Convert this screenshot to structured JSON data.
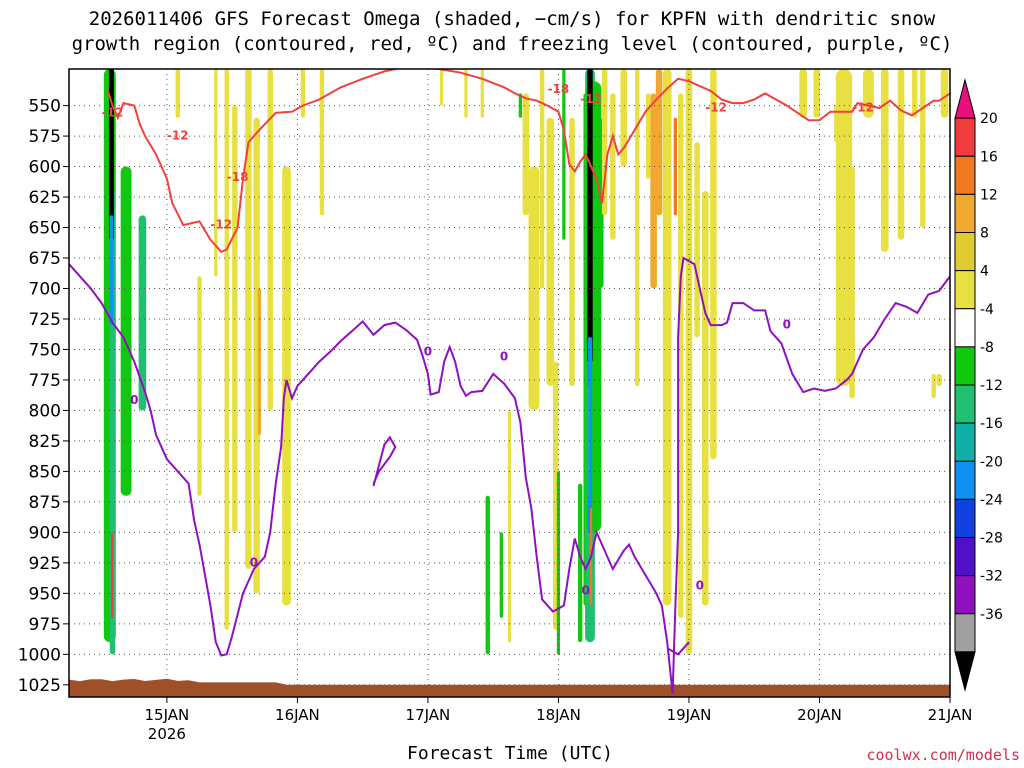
{
  "title_line1": "2026011406 GFS Forecast Omega (shaded, −cm/s) for KPFN with dendritic snow",
  "title_line2": "growth region (contoured, red, ºC) and freezing level (contoured, purple, ºC)",
  "xaxis_title": "Forecast Time (UTC)",
  "credit": "coolwx.com/models",
  "chart_data": {
    "type": "heatmap",
    "title": "2026011406 GFS Forecast Omega (shaded, −cm/s) for KPFN with dendritic snow growth region (contoured, red, ºC) and freezing level (contoured, purple, ºC)",
    "xlabel": "Forecast Time (UTC)",
    "ylabel": "",
    "x_range_hours": [
      6,
      168
    ],
    "y_axis": {
      "ticks": [
        550,
        575,
        600,
        625,
        650,
        675,
        700,
        725,
        750,
        775,
        800,
        825,
        850,
        875,
        900,
        925,
        950,
        975,
        1000,
        1025
      ],
      "range": [
        520,
        1035
      ]
    },
    "x_ticks": [
      {
        "label": "15JAN",
        "sublabel": "2026",
        "hour": 24
      },
      {
        "label": "16JAN",
        "hour": 48
      },
      {
        "label": "17JAN",
        "hour": 72
      },
      {
        "label": "18JAN",
        "hour": 96
      },
      {
        "label": "19JAN",
        "hour": 120
      },
      {
        "label": "20JAN",
        "hour": 144
      },
      {
        "label": "21JAN",
        "hour": 168
      }
    ],
    "colorbar": {
      "levels": [
        20,
        16,
        12,
        8,
        4,
        -4,
        -8,
        -12,
        -16,
        -20,
        -24,
        -28,
        -32,
        -36
      ],
      "colors": [
        "#e8107a",
        "#f03c3c",
        "#f07820",
        "#f0a830",
        "#e0cc30",
        "#e8e040",
        "#ffffff",
        "#10c810",
        "#20c070",
        "#10b0a8",
        "#1090f0",
        "#1040e0",
        "#5010c8",
        "#9010c0",
        "#a0a0a0",
        "#000000"
      ]
    },
    "colors": {
      "dgz_contour": "#f04040",
      "freezing_contour": "#9010c0",
      "ground": "#a05028"
    },
    "contour_labels": {
      "red": [
        "-12",
        "-12",
        "-18",
        "-12",
        "-18",
        "-12",
        "-12",
        "-12"
      ],
      "purple": [
        "0",
        "0",
        "0",
        "0",
        "0",
        "0",
        "0"
      ]
    },
    "grid": true
  }
}
